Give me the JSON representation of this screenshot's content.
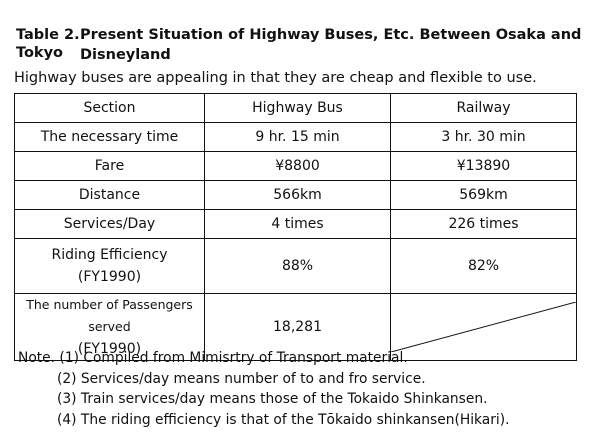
{
  "title": {
    "label": "Table 2.",
    "line1": "Present Situation of Highway Buses, Etc. Between Osaka and Tokyo",
    "line2": "Disneyland"
  },
  "subtitle": "Highway buses are appealing in that they are cheap and flexible to use.",
  "table": {
    "headers": [
      "Section",
      "Highway Bus",
      "Railway"
    ],
    "rows": [
      {
        "section": "The necessary time",
        "bus": "9 hr. 15 min",
        "rail": "3 hr. 30 min"
      },
      {
        "section": "Fare",
        "bus": "¥8800",
        "rail": "¥13890"
      },
      {
        "section": "Distance",
        "bus": "566km",
        "rail": "569km"
      },
      {
        "section": "Services/Day",
        "bus": "4 times",
        "rail": "226 times"
      },
      {
        "section": "Riding Efficiency",
        "section_sub": "(FY1990)",
        "bus": "88%",
        "rail": "82%"
      },
      {
        "section": "The number of Passengers served",
        "section_sub": "(FY1990)",
        "bus": "18,281",
        "rail": ""
      }
    ]
  },
  "notes": [
    "Note. (1) Compiled from Mimisrtry of Transport material.",
    "(2) Services/day means number of to and fro service.",
    "(3) Train services/day means those of the Tokaido Shinkansen.",
    "(4) The riding efficiency is that of the Tōkaido shinkansen(Hikari)."
  ]
}
